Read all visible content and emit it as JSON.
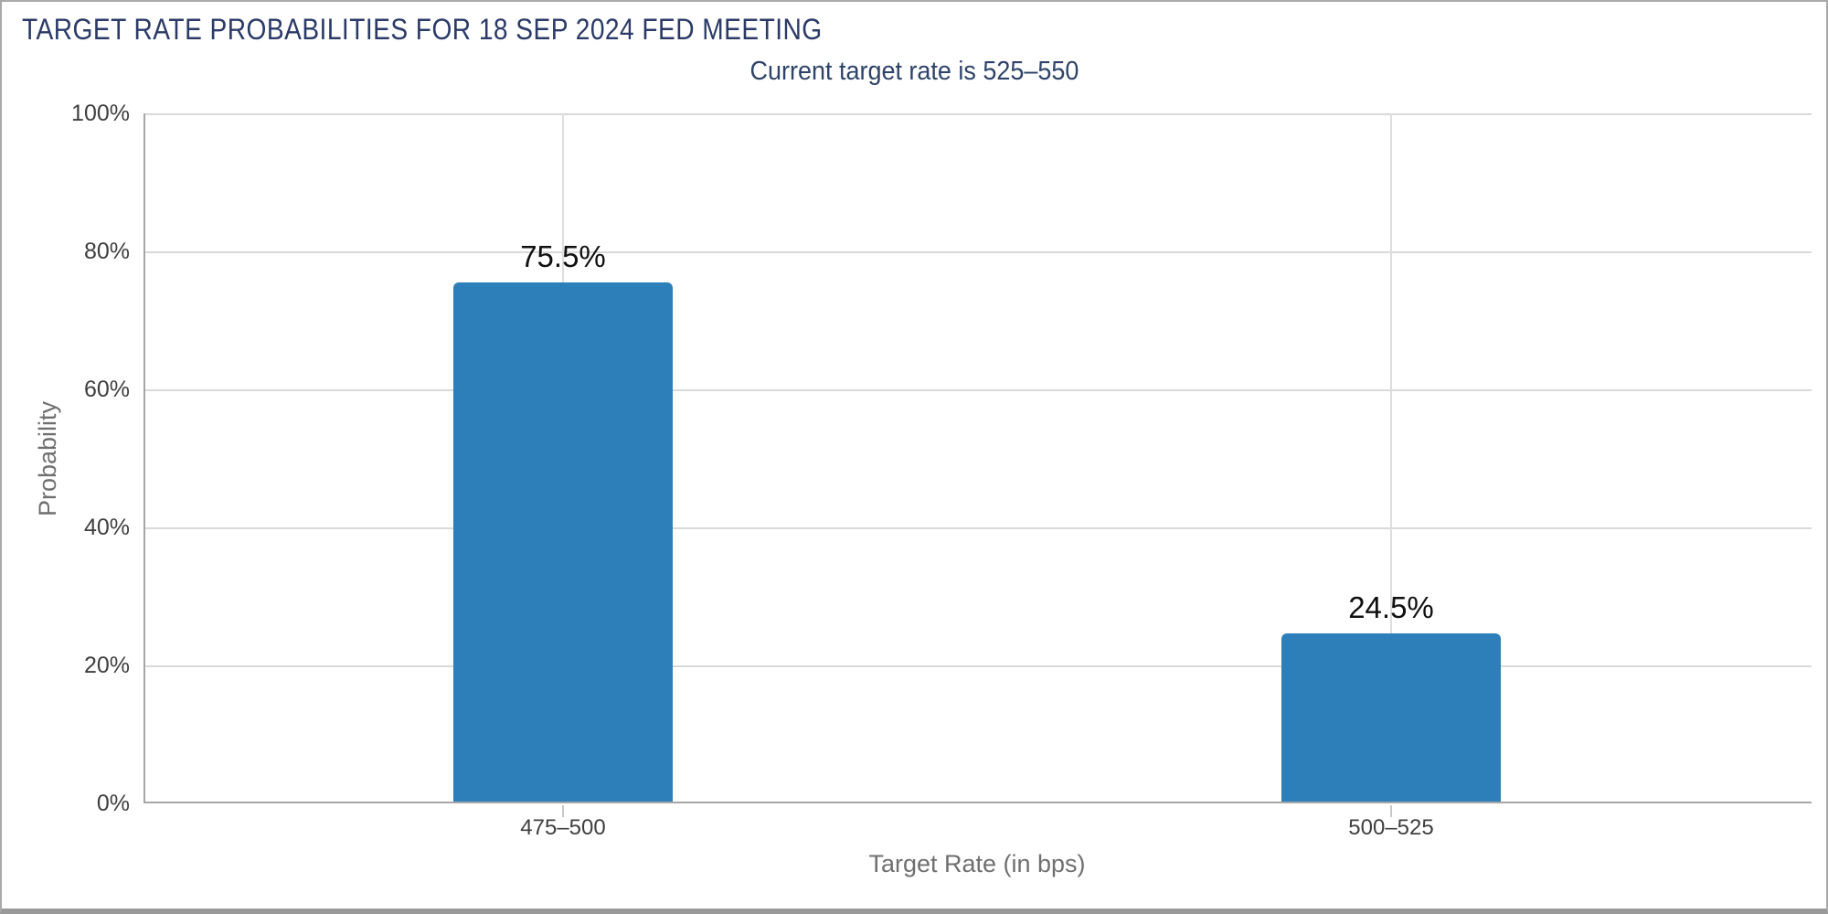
{
  "chart_data": {
    "type": "bar",
    "title": "TARGET RATE PROBABILITIES FOR 18 SEP 2024 FED MEETING",
    "subtitle": "Current target rate is 525–550",
    "categories": [
      "475–500",
      "500–525"
    ],
    "values": [
      75.5,
      24.5
    ],
    "value_labels": [
      "75.5%",
      "24.5%"
    ],
    "xlabel": "Target Rate (in bps)",
    "ylabel": "Probability",
    "ylim": [
      0,
      100
    ],
    "ytick_values": [
      0,
      20,
      40,
      60,
      80,
      100
    ],
    "ytick_labels": [
      "0%",
      "20%",
      "40%",
      "60%",
      "80%",
      "100%"
    ],
    "grid": true,
    "legend_position": "none",
    "bar_color": "#2c7fb8"
  },
  "colors": {
    "title_text": "#2b3a67",
    "subtitle_text": "#2e4368",
    "bar": "#2c7fb8",
    "gridline": "#d9d9d9",
    "axis_line": "#a6a6a6",
    "tick_label": "#3f3f3f",
    "axis_title": "#6f6f6f",
    "value_label": "#101010",
    "page_border": "#a9a9a9"
  }
}
